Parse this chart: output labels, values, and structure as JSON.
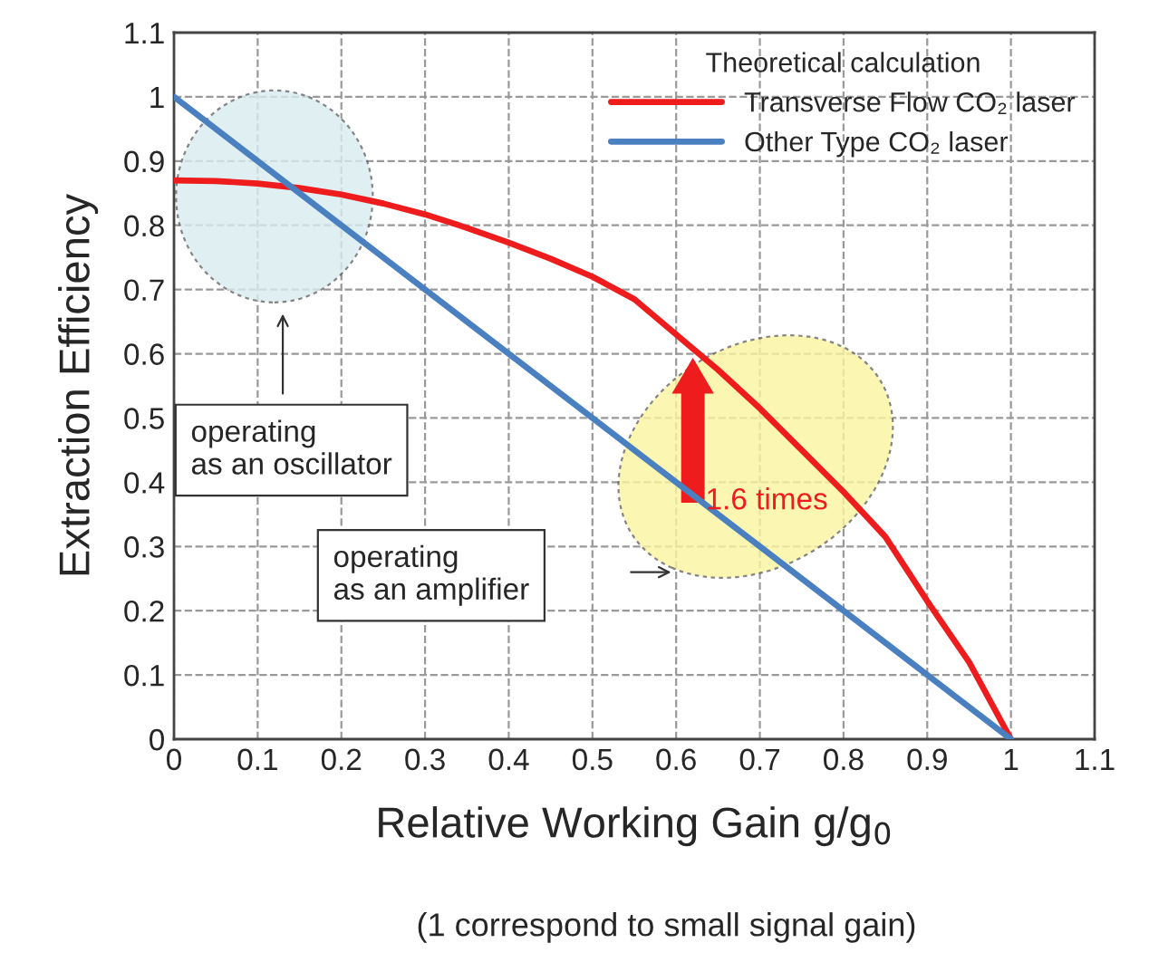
{
  "chart_data": {
    "type": "line",
    "xlabel": "Relative Working Gain g/g$_{0}$",
    "ylabel": "Extraction Efficiency",
    "legend_title": "Theoretical calculation",
    "series": [
      {
        "name": "Transverse Flow CO₂ laser",
        "color": "#ee1c1c",
        "x": [
          0,
          0.05,
          0.1,
          0.15,
          0.2,
          0.25,
          0.3,
          0.35,
          0.4,
          0.45,
          0.5,
          0.55,
          0.6,
          0.65,
          0.7,
          0.75,
          0.8,
          0.85,
          0.9,
          0.95,
          1
        ],
        "values": [
          0.87,
          0.869,
          0.865,
          0.858,
          0.848,
          0.834,
          0.817,
          0.796,
          0.773,
          0.748,
          0.72,
          0.685,
          0.63,
          0.575,
          0.515,
          0.45,
          0.385,
          0.315,
          0.215,
          0.12,
          0
        ]
      },
      {
        "name": "Other Type CO₂ laser",
        "color": "#4a7fc0",
        "x": [
          0,
          1
        ],
        "values": [
          1,
          0
        ]
      }
    ],
    "xlim": [
      0,
      1.1
    ],
    "ylim": [
      0,
      1.1
    ],
    "xticks": [
      0,
      0.1,
      0.2,
      0.3,
      0.4,
      0.5,
      0.6,
      0.7,
      0.8,
      0.9,
      1,
      1.1
    ],
    "yticks": [
      0,
      0.1,
      0.2,
      0.3,
      0.4,
      0.5,
      0.6,
      0.7,
      0.8,
      0.9,
      1,
      1.1
    ],
    "grid": true,
    "legend": "top right",
    "marker": "none",
    "line_style": "solid",
    "annotations": [
      "operating\nas an oscillator",
      "operating\nas an amplifier",
      "1.6 times",
      "(1 correspond to small signal gain)"
    ]
  }
}
